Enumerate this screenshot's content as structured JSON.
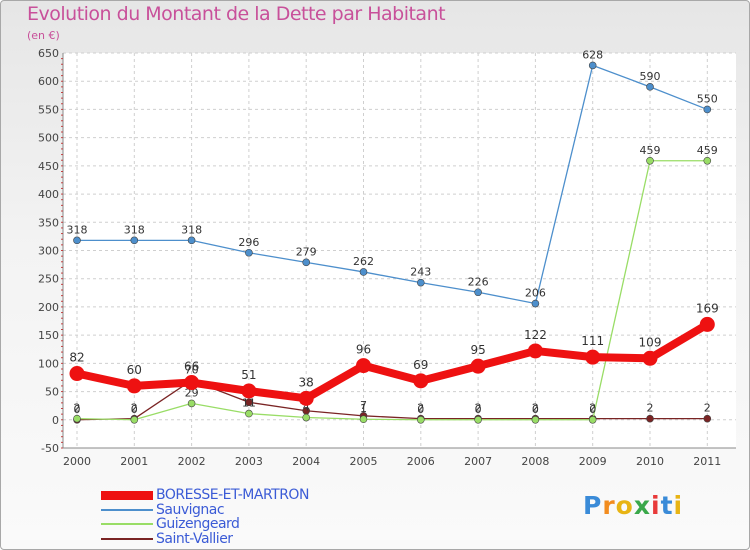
{
  "chart_data": {
    "type": "line",
    "title": "Evolution du Montant de la Dette par Habitant",
    "subtitle": "(en €)",
    "xlabel": "",
    "ylabel": "",
    "ylim": [
      -50,
      650
    ],
    "ytick_step": 50,
    "categories": [
      "2000",
      "2001",
      "2002",
      "2003",
      "2004",
      "2005",
      "2006",
      "2007",
      "2008",
      "2009",
      "2010",
      "2011"
    ],
    "grid": true,
    "legend_position": "bottom-left",
    "series": [
      {
        "name": "Saint-Vallier",
        "color": "#7a2424",
        "values": [
          0,
          2,
          70,
          31,
          16,
          7,
          2,
          2,
          2,
          2,
          2,
          2
        ]
      },
      {
        "name": "Guizengeard",
        "color": "#99dd66",
        "values": [
          2,
          0,
          29,
          11,
          4,
          1,
          0,
          0,
          0,
          0,
          459,
          459
        ]
      },
      {
        "name": "Sauvignac",
        "color": "#4d8fcc",
        "values": [
          318,
          318,
          318,
          296,
          279,
          262,
          243,
          226,
          206,
          628,
          590,
          550
        ]
      },
      {
        "name": "BORESSE-ET-MARTRON",
        "color": "#ee1111",
        "values": [
          82,
          60,
          66,
          51,
          38,
          96,
          69,
          95,
          122,
          111,
          109,
          169
        ]
      }
    ]
  },
  "legend": [
    "BORESSE-ET-MARTRON",
    "Sauvignac",
    "Guizengeard",
    "Saint-Vallier"
  ],
  "brand": {
    "letters": [
      "P",
      "r",
      "o",
      "x",
      "i",
      "t",
      "i"
    ],
    "colors": [
      "#3a8bd8",
      "#f28c1f",
      "#e8b414",
      "#3aa84a",
      "#e83a3a",
      "#3a8bd8",
      "#e8b414"
    ]
  }
}
